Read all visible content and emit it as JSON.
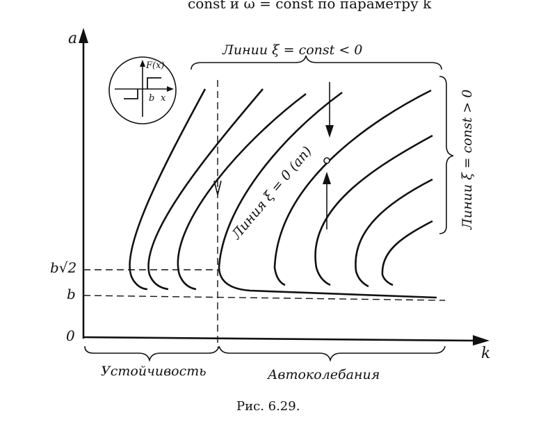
{
  "header": {
    "text": "const и ω = const по параметру k"
  },
  "axes": {
    "y_label": "a",
    "x_label": "k",
    "origin": "0",
    "b": "b",
    "b_sqrt2": "b√2"
  },
  "inset": {
    "function": "F(x)",
    "b": "b",
    "x": "x"
  },
  "annotations": {
    "lines_negative": "Линии ξ = const < 0",
    "lines_positive": "Линии ξ = const > 0",
    "line_zero": "Линия ξ = 0 (aп)"
  },
  "regions": {
    "stability": "Устойчивость",
    "self_oscillation": "Автоколебания"
  },
  "caption": "Рис. 6.29."
}
